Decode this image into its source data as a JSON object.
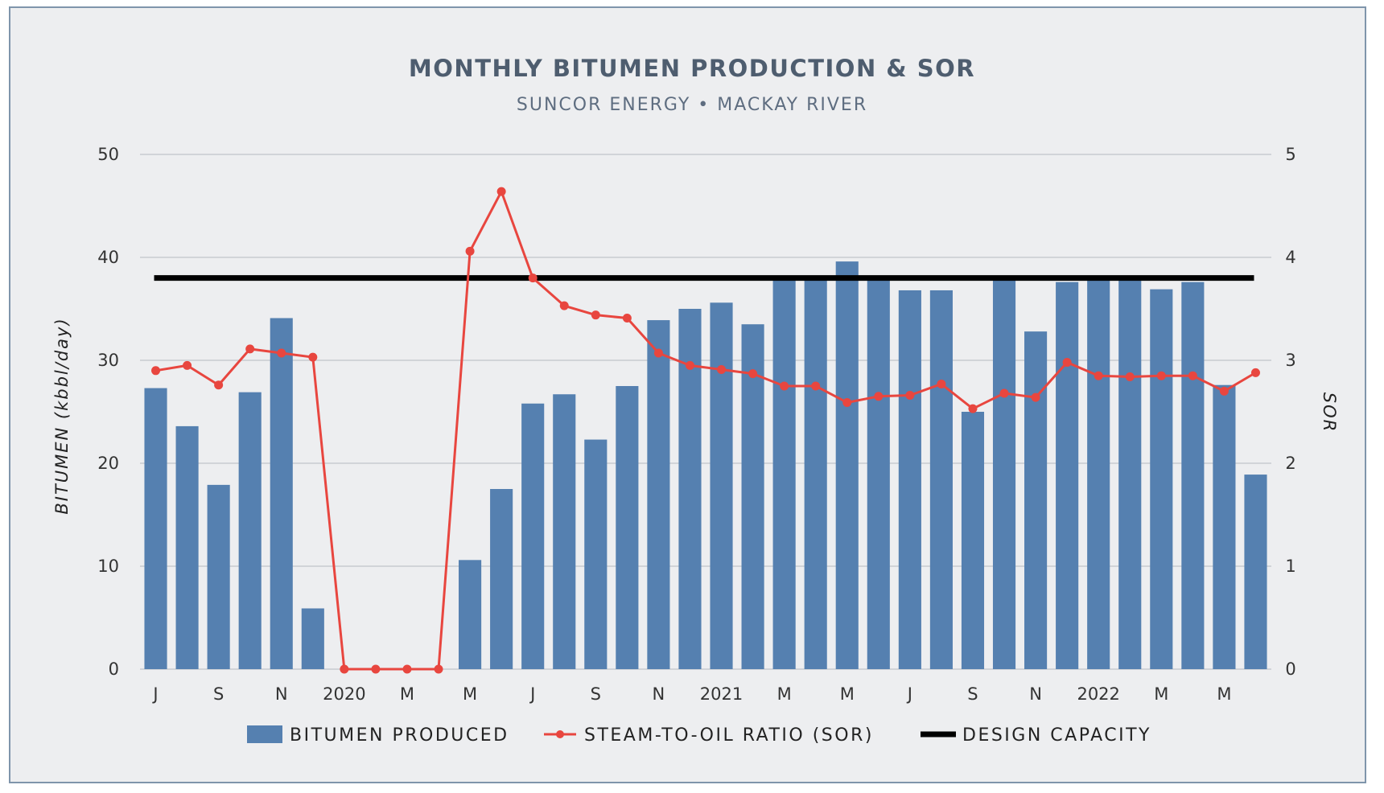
{
  "title": "MONTHLY BITUMEN PRODUCTION & SOR",
  "subtitle": "SUNCOR ENERGY • MACKAY RIVER",
  "colors": {
    "bar": "#5580b0",
    "line": "#e8463f",
    "capacity": "#000000",
    "grid": "#c8cbd0",
    "panel": "#edeef0",
    "border": "#7f95ab"
  },
  "chart_data": {
    "type": "bar",
    "categories": [
      "J",
      "",
      "S",
      "",
      "N",
      "",
      "2020",
      "",
      "M",
      "",
      "M",
      "",
      "J",
      "",
      "S",
      "",
      "N",
      "",
      "2021",
      "",
      "M",
      "",
      "M",
      "",
      "J",
      "",
      "S",
      "",
      "N",
      "",
      "2022",
      "",
      "M",
      "",
      "M",
      ""
    ],
    "series": [
      {
        "name": "BITUMEN PRODUCED",
        "type": "bar",
        "axis": "left",
        "values": [
          27.3,
          23.6,
          17.9,
          26.9,
          34.1,
          5.9,
          0,
          0,
          0,
          0,
          10.6,
          17.5,
          25.8,
          26.7,
          22.3,
          27.5,
          33.9,
          35.0,
          35.6,
          33.5,
          38.0,
          38.0,
          39.6,
          38.0,
          36.8,
          36.8,
          25.0,
          38.0,
          32.8,
          37.6,
          38.0,
          38.0,
          36.9,
          37.6,
          27.6,
          18.9
        ]
      },
      {
        "name": "STEAM-TO-OIL RATIO (SOR)",
        "type": "line",
        "axis": "right",
        "values": [
          2.9,
          2.95,
          2.76,
          3.11,
          3.07,
          3.03,
          0,
          0,
          0,
          0,
          4.06,
          4.64,
          3.8,
          3.53,
          3.44,
          3.41,
          3.07,
          2.95,
          2.91,
          2.87,
          2.75,
          2.75,
          2.59,
          2.65,
          2.66,
          2.77,
          2.53,
          2.68,
          2.64,
          2.98,
          2.85,
          2.84,
          2.85,
          2.85,
          2.7,
          2.88
        ]
      },
      {
        "name": "DESIGN CAPACITY",
        "type": "hline",
        "axis": "left",
        "value": 38
      }
    ],
    "ylabel": "BITUMEN (kbbl/day)",
    "y2label": "SOR",
    "ylim": [
      0,
      50
    ],
    "y2lim": [
      0,
      5
    ],
    "yticks": [
      "0",
      "10",
      "20",
      "30",
      "40",
      "50"
    ],
    "y2ticks": [
      "0",
      "1",
      "2",
      "3",
      "4",
      "5"
    ],
    "grid": true,
    "legend_position": "bottom"
  }
}
